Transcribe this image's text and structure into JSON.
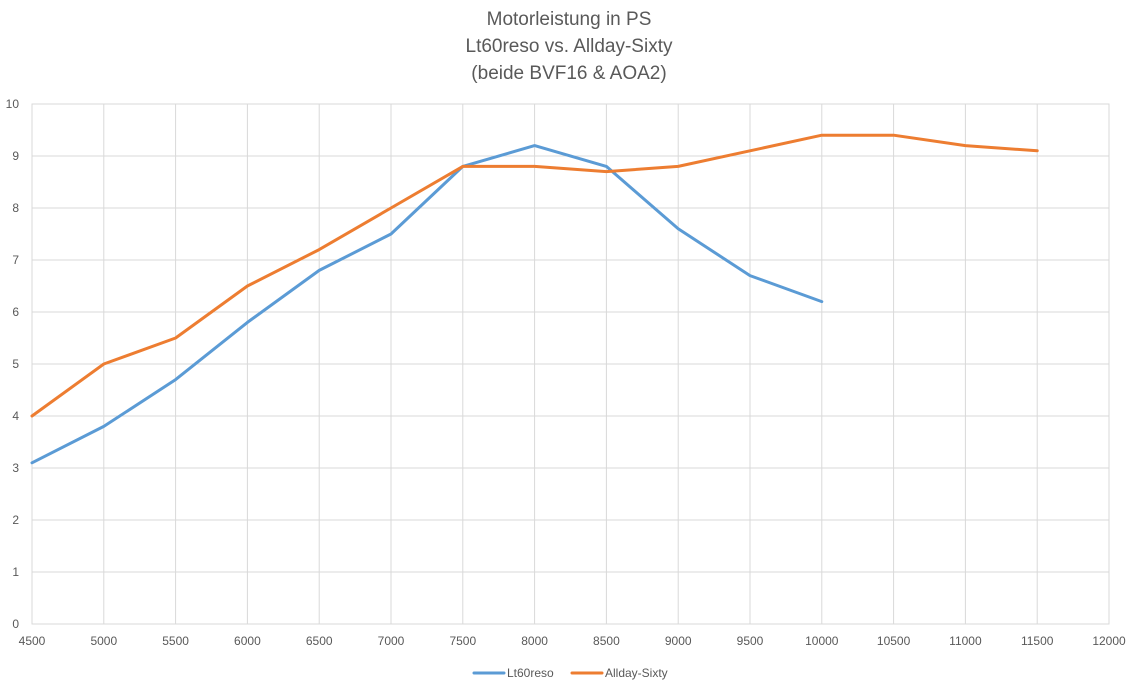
{
  "chart_data": {
    "type": "line",
    "title_lines": [
      "Motorleistung in PS",
      "Lt60reso vs. Allday-Sixty",
      "(beide BVF16 & AOA2)"
    ],
    "xlabel": "",
    "ylabel": "",
    "x_ticks": [
      4500,
      5000,
      5500,
      6000,
      6500,
      7000,
      7500,
      8000,
      8500,
      9000,
      9500,
      10000,
      10500,
      11000,
      11500,
      12000
    ],
    "y_ticks": [
      0,
      1,
      2,
      3,
      4,
      5,
      6,
      7,
      8,
      9,
      10
    ],
    "xlim": [
      4500,
      12000
    ],
    "ylim": [
      0,
      10
    ],
    "grid": true,
    "legend_position": "bottom",
    "series": [
      {
        "name": "Lt60reso",
        "color": "#5b9bd5",
        "x": [
          4500,
          5000,
          5500,
          6000,
          6500,
          7000,
          7500,
          8000,
          8500,
          9000,
          9500,
          10000
        ],
        "values": [
          3.1,
          3.8,
          4.7,
          5.8,
          6.8,
          7.5,
          8.8,
          9.2,
          8.8,
          7.6,
          6.7,
          6.2
        ]
      },
      {
        "name": "Allday-Sixty",
        "color": "#ed7d31",
        "x": [
          4500,
          5000,
          5500,
          6000,
          6500,
          7000,
          7500,
          8000,
          8500,
          9000,
          9500,
          10000,
          10500,
          11000,
          11500
        ],
        "values": [
          4.0,
          5.0,
          5.5,
          6.5,
          7.2,
          8.0,
          8.8,
          8.8,
          8.7,
          8.8,
          9.1,
          9.4,
          9.4,
          9.2,
          9.1
        ]
      }
    ]
  }
}
